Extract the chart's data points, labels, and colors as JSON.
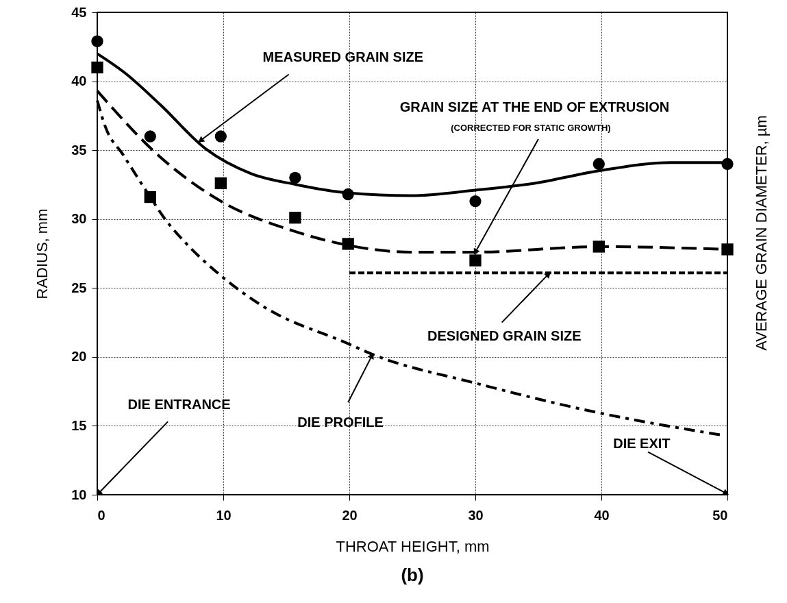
{
  "chart_data": {
    "type": "line",
    "xlabel": "THROAT HEIGHT, mm",
    "ylabel": "RADIUS, mm",
    "y2label": "AVERAGE GRAIN DIAMETER, µm",
    "xlim": [
      0,
      50
    ],
    "xticks": [
      0,
      10,
      20,
      30,
      40,
      50
    ],
    "ylim": [
      10,
      45
    ],
    "yticks": [
      10,
      15,
      20,
      25,
      30,
      35,
      40,
      45
    ],
    "grid": true,
    "series": [
      {
        "type": "scatter",
        "marker": "circle",
        "color": "#000000",
        "x": [
          0,
          4.2,
          9.8,
          15.7,
          19.9,
          30,
          39.8,
          50
        ],
        "values": [
          42.9,
          36,
          36,
          33,
          31.8,
          31.3,
          34,
          34
        ]
      },
      {
        "type": "line",
        "line_style": "solid",
        "color": "#000000",
        "x": [
          0,
          2.2,
          5,
          8.6,
          12.2,
          15.8,
          19.9,
          24.9,
          30,
          34.7,
          39.8,
          45.5,
          50
        ],
        "values": [
          42,
          40.6,
          38.3,
          35.1,
          33.3,
          32.5,
          31.9,
          31.7,
          32.1,
          32.6,
          33.5,
          34.1,
          34.1
        ]
      },
      {
        "type": "scatter",
        "marker": "square",
        "color": "#000000",
        "x": [
          0,
          4.2,
          9.8,
          15.7,
          19.9,
          30,
          39.8,
          50
        ],
        "values": [
          41,
          31.6,
          32.6,
          30.1,
          28.2,
          27,
          28,
          27.8
        ]
      },
      {
        "type": "line",
        "line_style": "dashed",
        "color": "#000000",
        "x": [
          0,
          5,
          9.8,
          15.7,
          19.9,
          24.9,
          30,
          39.8,
          50
        ],
        "values": [
          39.3,
          34.5,
          31.3,
          29.1,
          28.1,
          27.6,
          27.6,
          28,
          27.8
        ]
      },
      {
        "type": "line",
        "line_style": "dotted",
        "color": "#000000",
        "x": [
          20,
          50
        ],
        "values": [
          26.1,
          26.1
        ]
      },
      {
        "type": "line",
        "line_style": "dashdot",
        "color": "#000000",
        "x": [
          0,
          0.6,
          2.1,
          4.2,
          5.3,
          7.3,
          9.8,
          13.1,
          19.8,
          21.8,
          30,
          39.5,
          49.7
        ],
        "values": [
          38.6,
          36.8,
          34.6,
          31.6,
          30.1,
          28,
          25.9,
          23.7,
          21,
          20.2,
          18.1,
          16,
          14.3
        ]
      }
    ],
    "annotations": [
      {
        "text": "MEASURED GRAIN SIZE",
        "x": 8.2,
        "y": 35.7
      },
      "GRAIN SIZE AT THE END OF EXTRUSION",
      {
        "text": "(CORRECTED FOR STATIC GROWTH)",
        "x": 30,
        "y": 27.6
      },
      {
        "text": "DESIGNED GRAIN SIZE",
        "x": 35.8,
        "y": 26.0
      },
      {
        "text": "DIE PROFILE",
        "x": 21.8,
        "y": 20.1
      },
      "DIE ENTRANCE",
      "DIE EXIT",
      "(b)"
    ]
  }
}
